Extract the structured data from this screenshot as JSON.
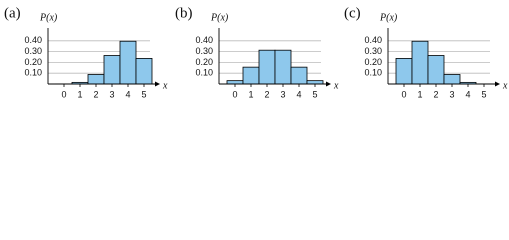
{
  "chart_data": [
    {
      "type": "bar",
      "panel_label": "(a)",
      "ylabel": "P(x)",
      "xlabel": "x",
      "x": [
        0,
        1,
        2,
        3,
        4,
        5
      ],
      "values": [
        0.001,
        0.015,
        0.088,
        0.264,
        0.396,
        0.237
      ],
      "color": "#8ec8ec",
      "xlim": [
        -1,
        6
      ],
      "xticks": [
        0,
        1,
        2,
        3,
        4,
        5
      ],
      "ylim": [
        0,
        0.5
      ],
      "yticks": [
        {
          "value": 0.1,
          "label": "0.10"
        },
        {
          "value": 0.2,
          "label": "0.20"
        },
        {
          "value": 0.3,
          "label": "0.30"
        },
        {
          "value": 0.4,
          "label": "0.40"
        }
      ],
      "grid": true
    },
    {
      "type": "bar",
      "panel_label": "(b)",
      "ylabel": "P(x)",
      "xlabel": "x",
      "x": [
        0,
        1,
        2,
        3,
        4,
        5
      ],
      "values": [
        0.031,
        0.156,
        0.313,
        0.313,
        0.156,
        0.031
      ],
      "color": "#8ec8ec",
      "xlim": [
        -1,
        6
      ],
      "xticks": [
        0,
        1,
        2,
        3,
        4,
        5
      ],
      "ylim": [
        0,
        0.5
      ],
      "yticks": [
        {
          "value": 0.1,
          "label": "0.10"
        },
        {
          "value": 0.2,
          "label": "0.20"
        },
        {
          "value": 0.3,
          "label": "0.30"
        },
        {
          "value": 0.4,
          "label": "0.40"
        }
      ],
      "grid": true
    },
    {
      "type": "bar",
      "panel_label": "(c)",
      "ylabel": "P(x)",
      "xlabel": "x",
      "x": [
        0,
        1,
        2,
        3,
        4,
        5
      ],
      "values": [
        0.237,
        0.396,
        0.264,
        0.088,
        0.015,
        0.001
      ],
      "color": "#8ec8ec",
      "xlim": [
        -1,
        6
      ],
      "xticks": [
        0,
        1,
        2,
        3,
        4,
        5
      ],
      "ylim": [
        0,
        0.5
      ],
      "yticks": [
        {
          "value": 0.1,
          "label": "0.10"
        },
        {
          "value": 0.2,
          "label": "0.20"
        },
        {
          "value": 0.3,
          "label": "0.30"
        },
        {
          "value": 0.4,
          "label": "0.40"
        }
      ],
      "grid": true
    }
  ]
}
